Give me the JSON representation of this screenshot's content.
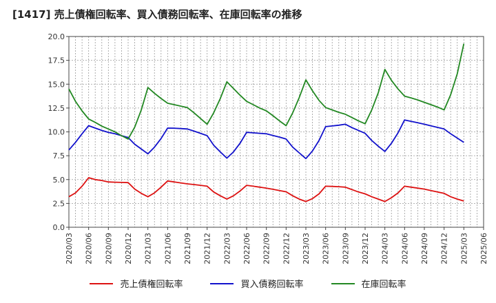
{
  "chart_data": {
    "type": "line",
    "title": "[1417]  売上債権回転率、買入債務回転率、在庫回転率の推移",
    "xlabel": "",
    "ylabel": "",
    "ylim": [
      0,
      20
    ],
    "yticks": [
      "0.0",
      "2.5",
      "5.0",
      "7.5",
      "10.0",
      "12.5",
      "15.0",
      "17.5",
      "20.0"
    ],
    "grid": true,
    "legend_position": "bottom",
    "x": [
      "2020/03",
      "2020/04",
      "2020/05",
      "2020/06",
      "2020/07",
      "2020/08",
      "2020/09",
      "2020/10",
      "2020/11",
      "2020/12",
      "2021/01",
      "2021/02",
      "2021/03",
      "2021/04",
      "2021/05",
      "2021/06",
      "2021/07",
      "2021/08",
      "2021/09",
      "2021/10",
      "2021/11",
      "2021/12",
      "2022/01",
      "2022/02",
      "2022/03",
      "2022/04",
      "2022/05",
      "2022/06",
      "2022/07",
      "2022/08",
      "2022/09",
      "2022/10",
      "2022/11",
      "2022/12",
      "2023/01",
      "2023/02",
      "2023/03",
      "2023/04",
      "2023/05",
      "2023/06",
      "2023/07",
      "2023/08",
      "2023/09",
      "2023/10",
      "2023/11",
      "2023/12",
      "2024/01",
      "2024/02",
      "2024/03",
      "2024/04",
      "2024/05",
      "2024/06",
      "2024/07",
      "2024/08",
      "2024/09",
      "2024/10",
      "2024/11",
      "2024/12",
      "2025/01",
      "2025/02",
      "2025/03",
      "2025/04",
      "2025/05",
      "2025/06"
    ],
    "xticks": [
      "2020/03",
      "2020/06",
      "2020/09",
      "2020/12",
      "2021/03",
      "2021/06",
      "2021/09",
      "2021/12",
      "2022/03",
      "2022/06",
      "2022/09",
      "2022/12",
      "2023/03",
      "2023/06",
      "2023/09",
      "2023/12",
      "2024/03",
      "2024/06",
      "2024/09",
      "2024/12",
      "2025/03",
      "2025/06"
    ],
    "series": [
      {
        "name": "売上債権回転率",
        "color": "#dd1111",
        "values": [
          3.2,
          3.6,
          4.3,
          5.2,
          5.0,
          4.9,
          4.75,
          4.72,
          4.7,
          4.68,
          4.0,
          3.55,
          3.2,
          3.6,
          4.2,
          4.85,
          4.75,
          4.65,
          4.55,
          4.48,
          4.4,
          4.3,
          3.7,
          3.3,
          2.95,
          3.3,
          3.8,
          4.4,
          4.3,
          4.2,
          4.1,
          3.98,
          3.85,
          3.72,
          3.3,
          2.95,
          2.7,
          3.0,
          3.5,
          4.3,
          4.28,
          4.25,
          4.2,
          3.95,
          3.7,
          3.5,
          3.2,
          2.95,
          2.7,
          3.1,
          3.6,
          4.3,
          4.2,
          4.1,
          4.0,
          3.85,
          3.7,
          3.55,
          3.2,
          2.95,
          2.75,
          null,
          null,
          null
        ]
      },
      {
        "name": "買入債務回転率",
        "color": "#1111cc",
        "values": [
          8.1,
          8.9,
          9.8,
          10.65,
          10.4,
          10.15,
          9.95,
          9.8,
          9.6,
          9.4,
          8.7,
          8.2,
          7.7,
          8.4,
          9.3,
          10.4,
          10.38,
          10.35,
          10.3,
          10.08,
          9.85,
          9.6,
          8.6,
          7.9,
          7.25,
          7.9,
          8.8,
          9.95,
          9.9,
          9.85,
          9.8,
          9.62,
          9.45,
          9.25,
          8.4,
          7.8,
          7.2,
          8.0,
          9.1,
          10.55,
          10.62,
          10.7,
          10.8,
          10.45,
          10.15,
          9.85,
          9.1,
          8.5,
          7.95,
          8.8,
          9.9,
          11.25,
          11.1,
          10.95,
          10.8,
          10.63,
          10.47,
          10.3,
          9.8,
          9.35,
          8.9,
          null,
          null,
          null
        ]
      },
      {
        "name": "在庫回転率",
        "color": "#228822",
        "values": [
          14.5,
          13.2,
          12.2,
          11.35,
          11.0,
          10.6,
          10.3,
          10.0,
          9.6,
          9.25,
          10.5,
          12.3,
          14.65,
          14.05,
          13.5,
          13.0,
          12.85,
          12.7,
          12.55,
          12.0,
          11.4,
          10.8,
          12.0,
          13.5,
          15.25,
          14.55,
          13.85,
          13.2,
          12.85,
          12.5,
          12.2,
          11.7,
          11.15,
          10.65,
          12.0,
          13.6,
          15.45,
          14.3,
          13.3,
          12.55,
          12.3,
          12.05,
          11.85,
          11.5,
          11.15,
          10.85,
          12.3,
          14.1,
          16.55,
          15.4,
          14.5,
          13.75,
          13.55,
          13.35,
          13.1,
          12.85,
          12.6,
          12.3,
          13.9,
          16.1,
          19.25,
          null,
          null,
          null
        ]
      }
    ]
  }
}
